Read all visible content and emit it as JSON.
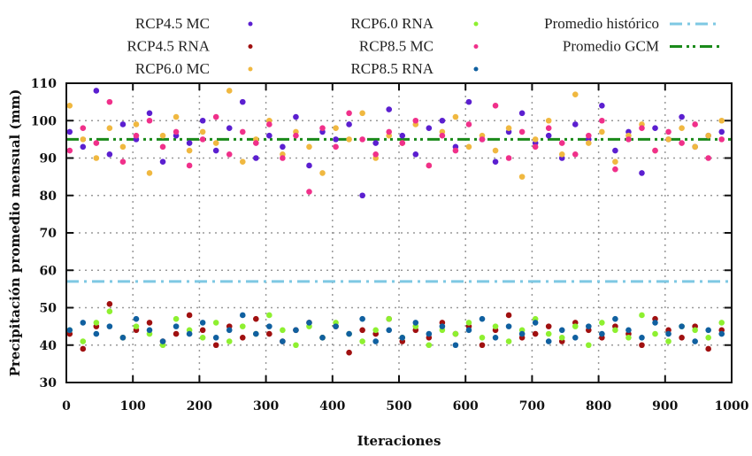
{
  "chart_data": {
    "type": "scatter",
    "title": "",
    "xlabel": "Iteraciones",
    "ylabel": "Precipitación promedio mensual (mm)",
    "xlim": [
      0,
      1000
    ],
    "ylim": [
      30,
      110
    ],
    "xticks": [
      "0",
      "100",
      "200",
      "300",
      "400",
      "500",
      "600",
      "700",
      "800",
      "900",
      "1000"
    ],
    "yticks": [
      "30",
      "40",
      "50",
      "60",
      "70",
      "80",
      "90",
      "100",
      "110"
    ],
    "grid": true,
    "legend_position": "top",
    "x": [
      0,
      20,
      40,
      60,
      80,
      100,
      120,
      140,
      160,
      180,
      200,
      220,
      240,
      260,
      280,
      300,
      320,
      340,
      360,
      380,
      400,
      420,
      440,
      460,
      480,
      500,
      520,
      540,
      560,
      580,
      600,
      620,
      640,
      660,
      680,
      700,
      720,
      740,
      760,
      780,
      800,
      820,
      840,
      860,
      880,
      900,
      920,
      940,
      960,
      980
    ],
    "series": [
      {
        "name": "RCP4.5 MC",
        "color": "#5b1fd0",
        "values": [
          97,
          93,
          108,
          91,
          99,
          95,
          102,
          89,
          96,
          94,
          100,
          92,
          98,
          105,
          90,
          96,
          93,
          101,
          88,
          97,
          95,
          99,
          80,
          94,
          103,
          96,
          91,
          98,
          100,
          93,
          105,
          95,
          89,
          97,
          102,
          94,
          96,
          90,
          99,
          95,
          104,
          92,
          97,
          86,
          98,
          95,
          101,
          93,
          96,
          97
        ]
      },
      {
        "name": "RCP4.5 RNA",
        "color": "#a01010",
        "values": [
          43,
          39,
          45,
          51,
          42,
          44,
          46,
          41,
          43,
          48,
          44,
          40,
          45,
          42,
          47,
          43,
          41,
          44,
          46,
          42,
          45,
          38,
          44,
          43,
          47,
          41,
          44,
          42,
          46,
          43,
          45,
          40,
          44,
          48,
          42,
          43,
          45,
          41,
          46,
          44,
          42,
          45,
          43,
          40,
          47,
          44,
          42,
          45,
          39,
          44
        ]
      },
      {
        "name": "RCP6.0 MC",
        "color": "#f0b840",
        "values": [
          104,
          95,
          90,
          98,
          93,
          99,
          86,
          96,
          101,
          92,
          97,
          94,
          108,
          89,
          95,
          100,
          91,
          97,
          93,
          86,
          98,
          95,
          102,
          90,
          96,
          94,
          99,
          88,
          97,
          101,
          93,
          96,
          92,
          98,
          85,
          95,
          100,
          91,
          107,
          94,
          97,
          89,
          96,
          99,
          92,
          95,
          98,
          93,
          96,
          100
        ]
      },
      {
        "name": "RCP6.0 RNA",
        "color": "#8ef030",
        "values": [
          44,
          41,
          46,
          49,
          42,
          45,
          43,
          40,
          47,
          44,
          42,
          46,
          41,
          45,
          43,
          48,
          44,
          40,
          45,
          42,
          46,
          43,
          41,
          44,
          47,
          42,
          45,
          40,
          44,
          43,
          46,
          42,
          45,
          41,
          44,
          47,
          43,
          42,
          45,
          40,
          46,
          44,
          42,
          48,
          43,
          41,
          45,
          44,
          42,
          46
        ]
      },
      {
        "name": "RCP8.5 MC",
        "color": "#f0308a",
        "values": [
          92,
          98,
          94,
          105,
          89,
          96,
          100,
          93,
          97,
          88,
          95,
          101,
          91,
          97,
          94,
          99,
          90,
          96,
          81,
          98,
          93,
          102,
          95,
          91,
          97,
          94,
          100,
          88,
          96,
          92,
          99,
          95,
          104,
          90,
          97,
          93,
          98,
          94,
          91,
          96,
          100,
          87,
          95,
          98,
          92,
          97,
          94,
          99,
          90,
          95
        ]
      },
      {
        "name": "RCP8.5 RNA",
        "color": "#1060a0",
        "values": [
          44,
          46,
          43,
          45,
          42,
          47,
          44,
          41,
          45,
          43,
          46,
          42,
          44,
          48,
          43,
          45,
          41,
          44,
          46,
          42,
          45,
          43,
          47,
          41,
          44,
          42,
          46,
          43,
          45,
          40,
          44,
          47,
          42,
          45,
          43,
          46,
          41,
          44,
          42,
          45,
          43,
          47,
          44,
          42,
          46,
          43,
          45,
          41,
          44,
          43
        ]
      }
    ],
    "lines": [
      {
        "name": "Promedio histórico",
        "color": "#7ec8e3",
        "value": 57,
        "style": "dash-dot"
      },
      {
        "name": "Promedio GCM",
        "color": "#1a8a1a",
        "value": 95,
        "style": "dash-dot-dot"
      }
    ]
  }
}
